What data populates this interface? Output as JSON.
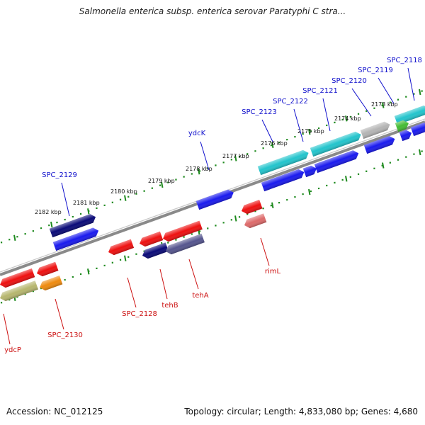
{
  "title": "Salmonella enterica subsp. enterica serovar Paratyphi C stra...",
  "accession_label": "Accession: NC_012125",
  "summary_label": "Topology: circular; Length: 4,833,080 bp; Genes: 4,680",
  "colors": {
    "backbone": "#8a8a8a",
    "tick": "#1e8a1e",
    "forward_label": "#1010cc",
    "reverse_label": "#cc1010",
    "blue": "#1a1aee",
    "navy": "#0a0a78",
    "red": "#ee1010",
    "cyan": "#22c4cc",
    "gray": "#b4b4b4",
    "green": "#44bb33",
    "olive": "#b6b66e",
    "orange": "#ee8a0e",
    "lavender": "#55558e",
    "pink": "#dd6a6a"
  },
  "kbp_ticks": [
    "2182 kbp",
    "2181 kbp",
    "2180 kbp",
    "2179 kbp",
    "2178 kbp",
    "2177 kbp",
    "2176 kbp",
    "2175 kbp",
    "2174 kbp",
    "2173 kbp"
  ],
  "forward_genes": [
    "SPC_2129",
    "ydcK",
    "SPC_2123",
    "SPC_2122",
    "SPC_2121",
    "SPC_2120",
    "SPC_2119",
    "SPC_2118"
  ],
  "reverse_genes": [
    "ydcP",
    "SPC_2130",
    "SPC_2128",
    "tehB",
    "tehA",
    "rimL"
  ]
}
